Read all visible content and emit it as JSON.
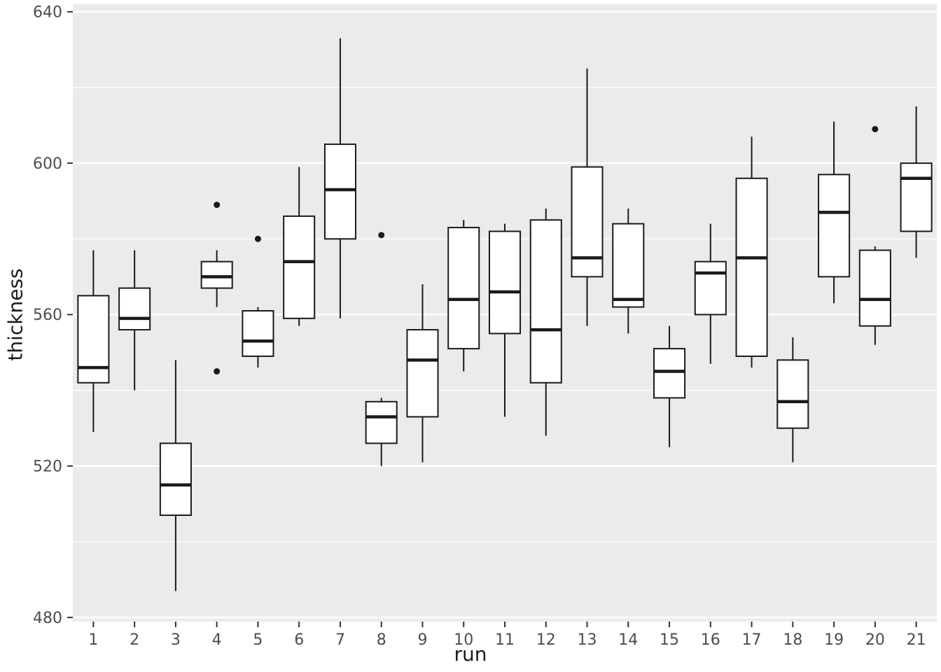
{
  "axes": {
    "xlabel": "run",
    "ylabel": "thickness"
  },
  "chart_data": {
    "type": "boxplot",
    "title": "",
    "xlabel": "run",
    "ylabel": "thickness",
    "x_categories": [
      "1",
      "2",
      "3",
      "4",
      "5",
      "6",
      "7",
      "8",
      "9",
      "10",
      "11",
      "12",
      "13",
      "14",
      "15",
      "16",
      "17",
      "18",
      "19",
      "20",
      "21"
    ],
    "y_ticks_major": [
      480,
      520,
      560,
      600,
      640
    ],
    "y_tick_labels": [
      "480",
      "520",
      "560",
      "600",
      "640"
    ],
    "y_ticks_minor": [
      500,
      540,
      580,
      620
    ],
    "ylim": [
      478.9,
      642
    ],
    "grid": "on",
    "legend": "none",
    "boxes": [
      {
        "run": "1",
        "whisker_low": 529,
        "q1": 542,
        "median": 546,
        "q3": 565,
        "whisker_high": 577,
        "outliers": []
      },
      {
        "run": "2",
        "whisker_low": 540,
        "q1": 556,
        "median": 559,
        "q3": 567,
        "whisker_high": 577,
        "outliers": []
      },
      {
        "run": "3",
        "whisker_low": 487,
        "q1": 507,
        "median": 515,
        "q3": 526,
        "whisker_high": 548,
        "outliers": []
      },
      {
        "run": "4",
        "whisker_low": 562,
        "q1": 567,
        "median": 570,
        "q3": 574,
        "whisker_high": 577,
        "outliers": [
          589,
          545
        ]
      },
      {
        "run": "5",
        "whisker_low": 546,
        "q1": 549,
        "median": 553,
        "q3": 561,
        "whisker_high": 562,
        "outliers": [
          580
        ]
      },
      {
        "run": "6",
        "whisker_low": 557,
        "q1": 559,
        "median": 574,
        "q3": 586,
        "whisker_high": 599,
        "outliers": []
      },
      {
        "run": "7",
        "whisker_low": 559,
        "q1": 580,
        "median": 593,
        "q3": 605,
        "whisker_high": 633,
        "outliers": []
      },
      {
        "run": "8",
        "whisker_low": 520,
        "q1": 526,
        "median": 533,
        "q3": 537,
        "whisker_high": 538,
        "outliers": [
          581
        ]
      },
      {
        "run": "9",
        "whisker_low": 521,
        "q1": 533,
        "median": 548,
        "q3": 556,
        "whisker_high": 568,
        "outliers": []
      },
      {
        "run": "10",
        "whisker_low": 545,
        "q1": 551,
        "median": 564,
        "q3": 583,
        "whisker_high": 585,
        "outliers": []
      },
      {
        "run": "11",
        "whisker_low": 533,
        "q1": 555,
        "median": 566,
        "q3": 582,
        "whisker_high": 584,
        "outliers": []
      },
      {
        "run": "12",
        "whisker_low": 528,
        "q1": 542,
        "median": 556,
        "q3": 585,
        "whisker_high": 588,
        "outliers": []
      },
      {
        "run": "13",
        "whisker_low": 557,
        "q1": 570,
        "median": 575,
        "q3": 599,
        "whisker_high": 625,
        "outliers": []
      },
      {
        "run": "14",
        "whisker_low": 555,
        "q1": 562,
        "median": 564,
        "q3": 584,
        "whisker_high": 588,
        "outliers": []
      },
      {
        "run": "15",
        "whisker_low": 525,
        "q1": 538,
        "median": 545,
        "q3": 551,
        "whisker_high": 557,
        "outliers": []
      },
      {
        "run": "16",
        "whisker_low": 547,
        "q1": 560,
        "median": 571,
        "q3": 574,
        "whisker_high": 584,
        "outliers": []
      },
      {
        "run": "17",
        "whisker_low": 546,
        "q1": 549,
        "median": 575,
        "q3": 596,
        "whisker_high": 607,
        "outliers": []
      },
      {
        "run": "18",
        "whisker_low": 521,
        "q1": 530,
        "median": 537,
        "q3": 548,
        "whisker_high": 554,
        "outliers": []
      },
      {
        "run": "19",
        "whisker_low": 563,
        "q1": 570,
        "median": 587,
        "q3": 597,
        "whisker_high": 611,
        "outliers": []
      },
      {
        "run": "20",
        "whisker_low": 552,
        "q1": 557,
        "median": 564,
        "q3": 577,
        "whisker_high": 578,
        "outliers": [
          609
        ]
      },
      {
        "run": "21",
        "whisker_low": 575,
        "q1": 582,
        "median": 596,
        "q3": 600,
        "whisker_high": 615,
        "outliers": []
      }
    ],
    "style": {
      "panel_bg": "#EBEBEB",
      "grid_major": "#FFFFFF",
      "grid_minor": "#FFFFFF",
      "box_fill": "#FFFFFF",
      "box_stroke": "#1A1A1A",
      "median_stroke": "#1A1A1A",
      "outlier_fill": "#1A1A1A",
      "tick_mark_color": "#333333",
      "tick_label_color": "#4D4D4D",
      "axis_title_color": "#1A1A1A"
    }
  }
}
